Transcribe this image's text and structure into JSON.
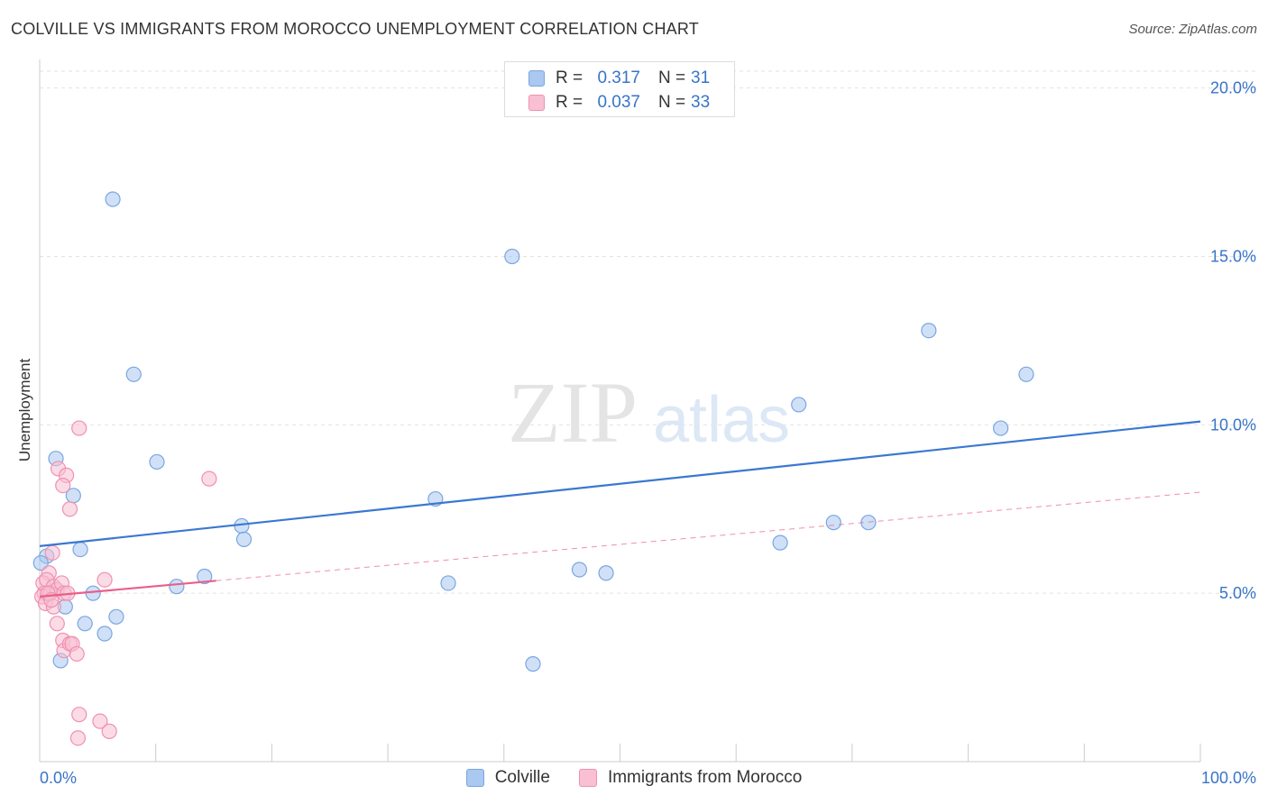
{
  "chart_data": {
    "type": "scatter",
    "title": "COLVILLE VS IMMIGRANTS FROM MOROCCO UNEMPLOYMENT CORRELATION CHART",
    "source": "Source: ZipAtlas.com",
    "xlabel": "",
    "ylabel": "Unemployment",
    "xlim": [
      0,
      100
    ],
    "ylim": [
      0,
      20.5
    ],
    "x_tick_labels": [
      "0.0%",
      "100.0%"
    ],
    "y_ticks": [
      5,
      10,
      15,
      20
    ],
    "y_tick_labels": [
      "5.0%",
      "10.0%",
      "15.0%",
      "20.0%"
    ],
    "watermark": {
      "part1": "ZIP",
      "part2": "atlas"
    },
    "legend_top": [
      {
        "r_label": "R =",
        "r_value": "0.317",
        "n_label": "N =",
        "n_value": "31"
      },
      {
        "r_label": "R =",
        "r_value": "0.037",
        "n_label": "N =",
        "n_value": "33"
      }
    ],
    "series": [
      {
        "name": "Colville",
        "fill": "#aac8f0",
        "stroke": "#7aa6e0",
        "line_color": "#3a78d0",
        "trend": {
          "x0": 0,
          "y0": 6.4,
          "x1": 100,
          "y1": 10.1,
          "style": "solid"
        },
        "points": [
          [
            6.3,
            16.7
          ],
          [
            8.1,
            11.5
          ],
          [
            10.1,
            8.9
          ],
          [
            0.6,
            6.1
          ],
          [
            1.4,
            9.0
          ],
          [
            2.9,
            7.9
          ],
          [
            3.5,
            6.3
          ],
          [
            2.2,
            4.6
          ],
          [
            4.6,
            5.0
          ],
          [
            3.9,
            4.1
          ],
          [
            5.6,
            3.8
          ],
          [
            6.6,
            4.3
          ],
          [
            1.8,
            3.0
          ],
          [
            11.8,
            5.2
          ],
          [
            14.2,
            5.5
          ],
          [
            17.4,
            7.0
          ],
          [
            17.6,
            6.6
          ],
          [
            34.1,
            7.8
          ],
          [
            35.2,
            5.3
          ],
          [
            40.7,
            15.0
          ],
          [
            42.5,
            2.9
          ],
          [
            46.5,
            5.7
          ],
          [
            48.8,
            5.6
          ],
          [
            63.8,
            6.5
          ],
          [
            65.4,
            10.6
          ],
          [
            68.4,
            7.1
          ],
          [
            71.4,
            7.1
          ],
          [
            76.6,
            12.8
          ],
          [
            82.8,
            9.9
          ],
          [
            85.0,
            11.5
          ],
          [
            0.1,
            5.9
          ]
        ]
      },
      {
        "name": "Immigrants from Morocco",
        "fill": "#f8c0d2",
        "stroke": "#f090b0",
        "line_color": "#e8608a",
        "trend": {
          "x0": 0,
          "y0": 4.9,
          "x1": 100,
          "y1": 8.0,
          "solid_until": 15.2
        },
        "points": [
          [
            3.4,
            9.9
          ],
          [
            1.6,
            8.7
          ],
          [
            2.3,
            8.5
          ],
          [
            2.0,
            8.2
          ],
          [
            2.6,
            7.5
          ],
          [
            14.6,
            8.4
          ],
          [
            1.1,
            6.2
          ],
          [
            0.8,
            5.6
          ],
          [
            0.3,
            5.3
          ],
          [
            0.6,
            5.4
          ],
          [
            1.2,
            5.2
          ],
          [
            0.4,
            5.0
          ],
          [
            0.2,
            4.9
          ],
          [
            0.9,
            5.0
          ],
          [
            1.5,
            5.1
          ],
          [
            1.9,
            5.3
          ],
          [
            2.1,
            5.0
          ],
          [
            5.6,
            5.4
          ],
          [
            0.5,
            4.7
          ],
          [
            1.2,
            4.6
          ],
          [
            1.5,
            4.1
          ],
          [
            2.0,
            3.6
          ],
          [
            2.1,
            3.3
          ],
          [
            2.6,
            3.5
          ],
          [
            2.8,
            3.5
          ],
          [
            3.2,
            3.2
          ],
          [
            3.4,
            1.4
          ],
          [
            5.2,
            1.2
          ],
          [
            3.3,
            0.7
          ],
          [
            6.0,
            0.9
          ],
          [
            0.7,
            5.0
          ],
          [
            1.0,
            4.8
          ],
          [
            2.4,
            5.0
          ]
        ]
      }
    ]
  }
}
